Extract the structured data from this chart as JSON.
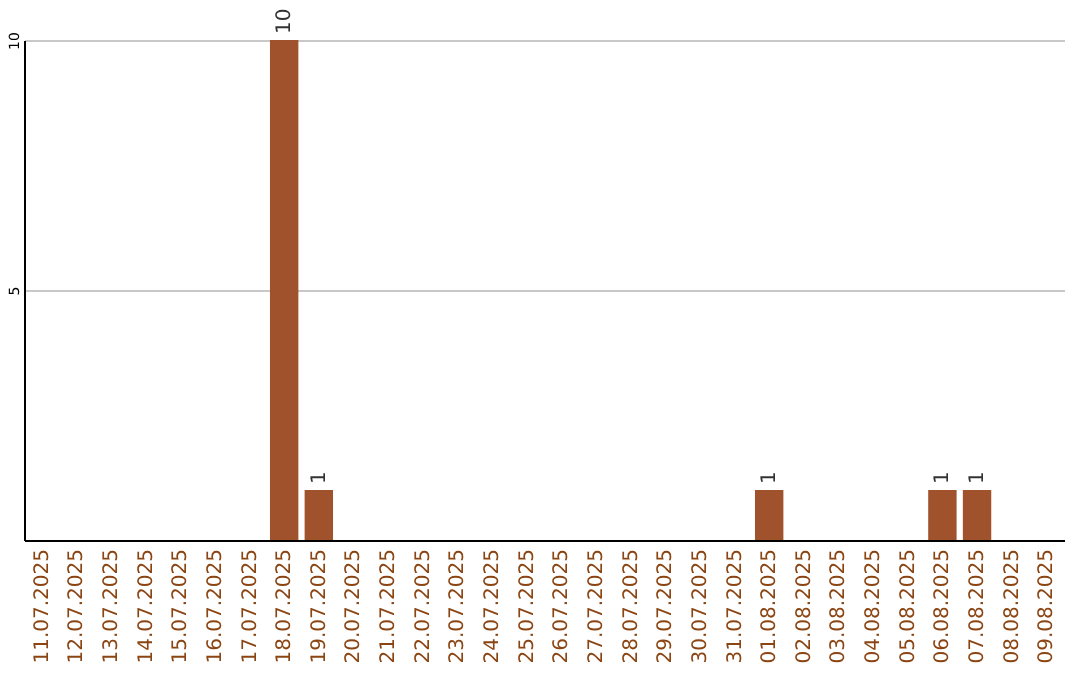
{
  "chart_data": {
    "type": "bar",
    "categories": [
      "11.07.2025",
      "12.07.2025",
      "13.07.2025",
      "14.07.2025",
      "15.07.2025",
      "16.07.2025",
      "17.07.2025",
      "18.07.2025",
      "19.07.2025",
      "20.07.2025",
      "21.07.2025",
      "22.07.2025",
      "23.07.2025",
      "24.07.2025",
      "25.07.2025",
      "26.07.2025",
      "27.07.2025",
      "28.07.2025",
      "29.07.2025",
      "30.07.2025",
      "31.07.2025",
      "01.08.2025",
      "02.08.2025",
      "03.08.2025",
      "04.08.2025",
      "05.08.2025",
      "06.08.2025",
      "07.08.2025",
      "08.08.2025",
      "09.08.2025"
    ],
    "values": [
      0,
      0,
      0,
      0,
      0,
      0,
      0,
      10,
      1,
      0,
      0,
      0,
      0,
      0,
      0,
      0,
      0,
      0,
      0,
      0,
      0,
      1,
      0,
      0,
      0,
      0,
      1,
      1,
      0,
      0
    ],
    "value_labels": [
      null,
      null,
      null,
      null,
      null,
      null,
      null,
      "10",
      "1",
      null,
      null,
      null,
      null,
      null,
      null,
      null,
      null,
      null,
      null,
      null,
      null,
      "1",
      null,
      null,
      null,
      null,
      "1",
      "1",
      null,
      null
    ],
    "color": "#a0522d",
    "ylim": [
      0,
      10
    ],
    "yticks": [
      5,
      10
    ],
    "grid": "y"
  }
}
